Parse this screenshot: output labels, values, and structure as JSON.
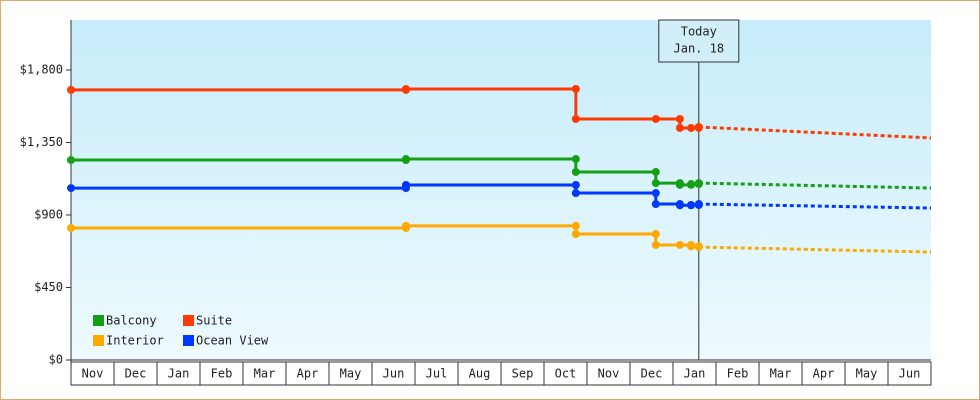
{
  "chart_data": {
    "type": "step-line",
    "categories": [
      "Nov",
      "Dec",
      "Jan",
      "Feb",
      "Mar",
      "Apr",
      "May",
      "Jun",
      "Jul",
      "Aug",
      "Sep",
      "Oct",
      "Nov",
      "Dec",
      "Jan",
      "Feb",
      "Mar",
      "Apr",
      "May",
      "Jun"
    ],
    "xlim": [
      0,
      20
    ],
    "x": [
      0,
      7.79,
      11.74,
      13.6,
      14.16,
      14.42,
      14.6
    ],
    "forecast_x": [
      14.6,
      20
    ],
    "ylim": [
      0,
      2110
    ],
    "yticks": [
      {
        "value": 0,
        "label": "$0"
      },
      {
        "value": 450,
        "label": "$450"
      },
      {
        "value": 900,
        "label": "$900"
      },
      {
        "value": 1350,
        "label": "$1,350"
      },
      {
        "value": 1800,
        "label": "$1,800"
      }
    ],
    "series": [
      {
        "name": "Balcony",
        "color": "#14a014",
        "values": [
          1241,
          1247,
          1167,
          1098,
          1087,
          1092,
          1098
        ],
        "forecast": [
          1098,
          1067
        ]
      },
      {
        "name": "Suite",
        "color": "#ff3a00",
        "values": [
          1676,
          1682,
          1496,
          1496,
          1440,
          1440,
          1446
        ],
        "forecast": [
          1446,
          1378
        ]
      },
      {
        "name": "Interior",
        "color": "#ffa800",
        "values": [
          819,
          832,
          782,
          714,
          714,
          705,
          701
        ],
        "forecast": [
          701,
          670
        ]
      },
      {
        "name": "Ocean View",
        "color": "#0038ff",
        "values": [
          1067,
          1086,
          1036,
          968,
          960,
          962,
          968
        ],
        "forecast": [
          968,
          943
        ]
      }
    ],
    "annotation": {
      "lines": [
        "Today",
        "Jan. 18"
      ],
      "x": 14.6
    }
  }
}
